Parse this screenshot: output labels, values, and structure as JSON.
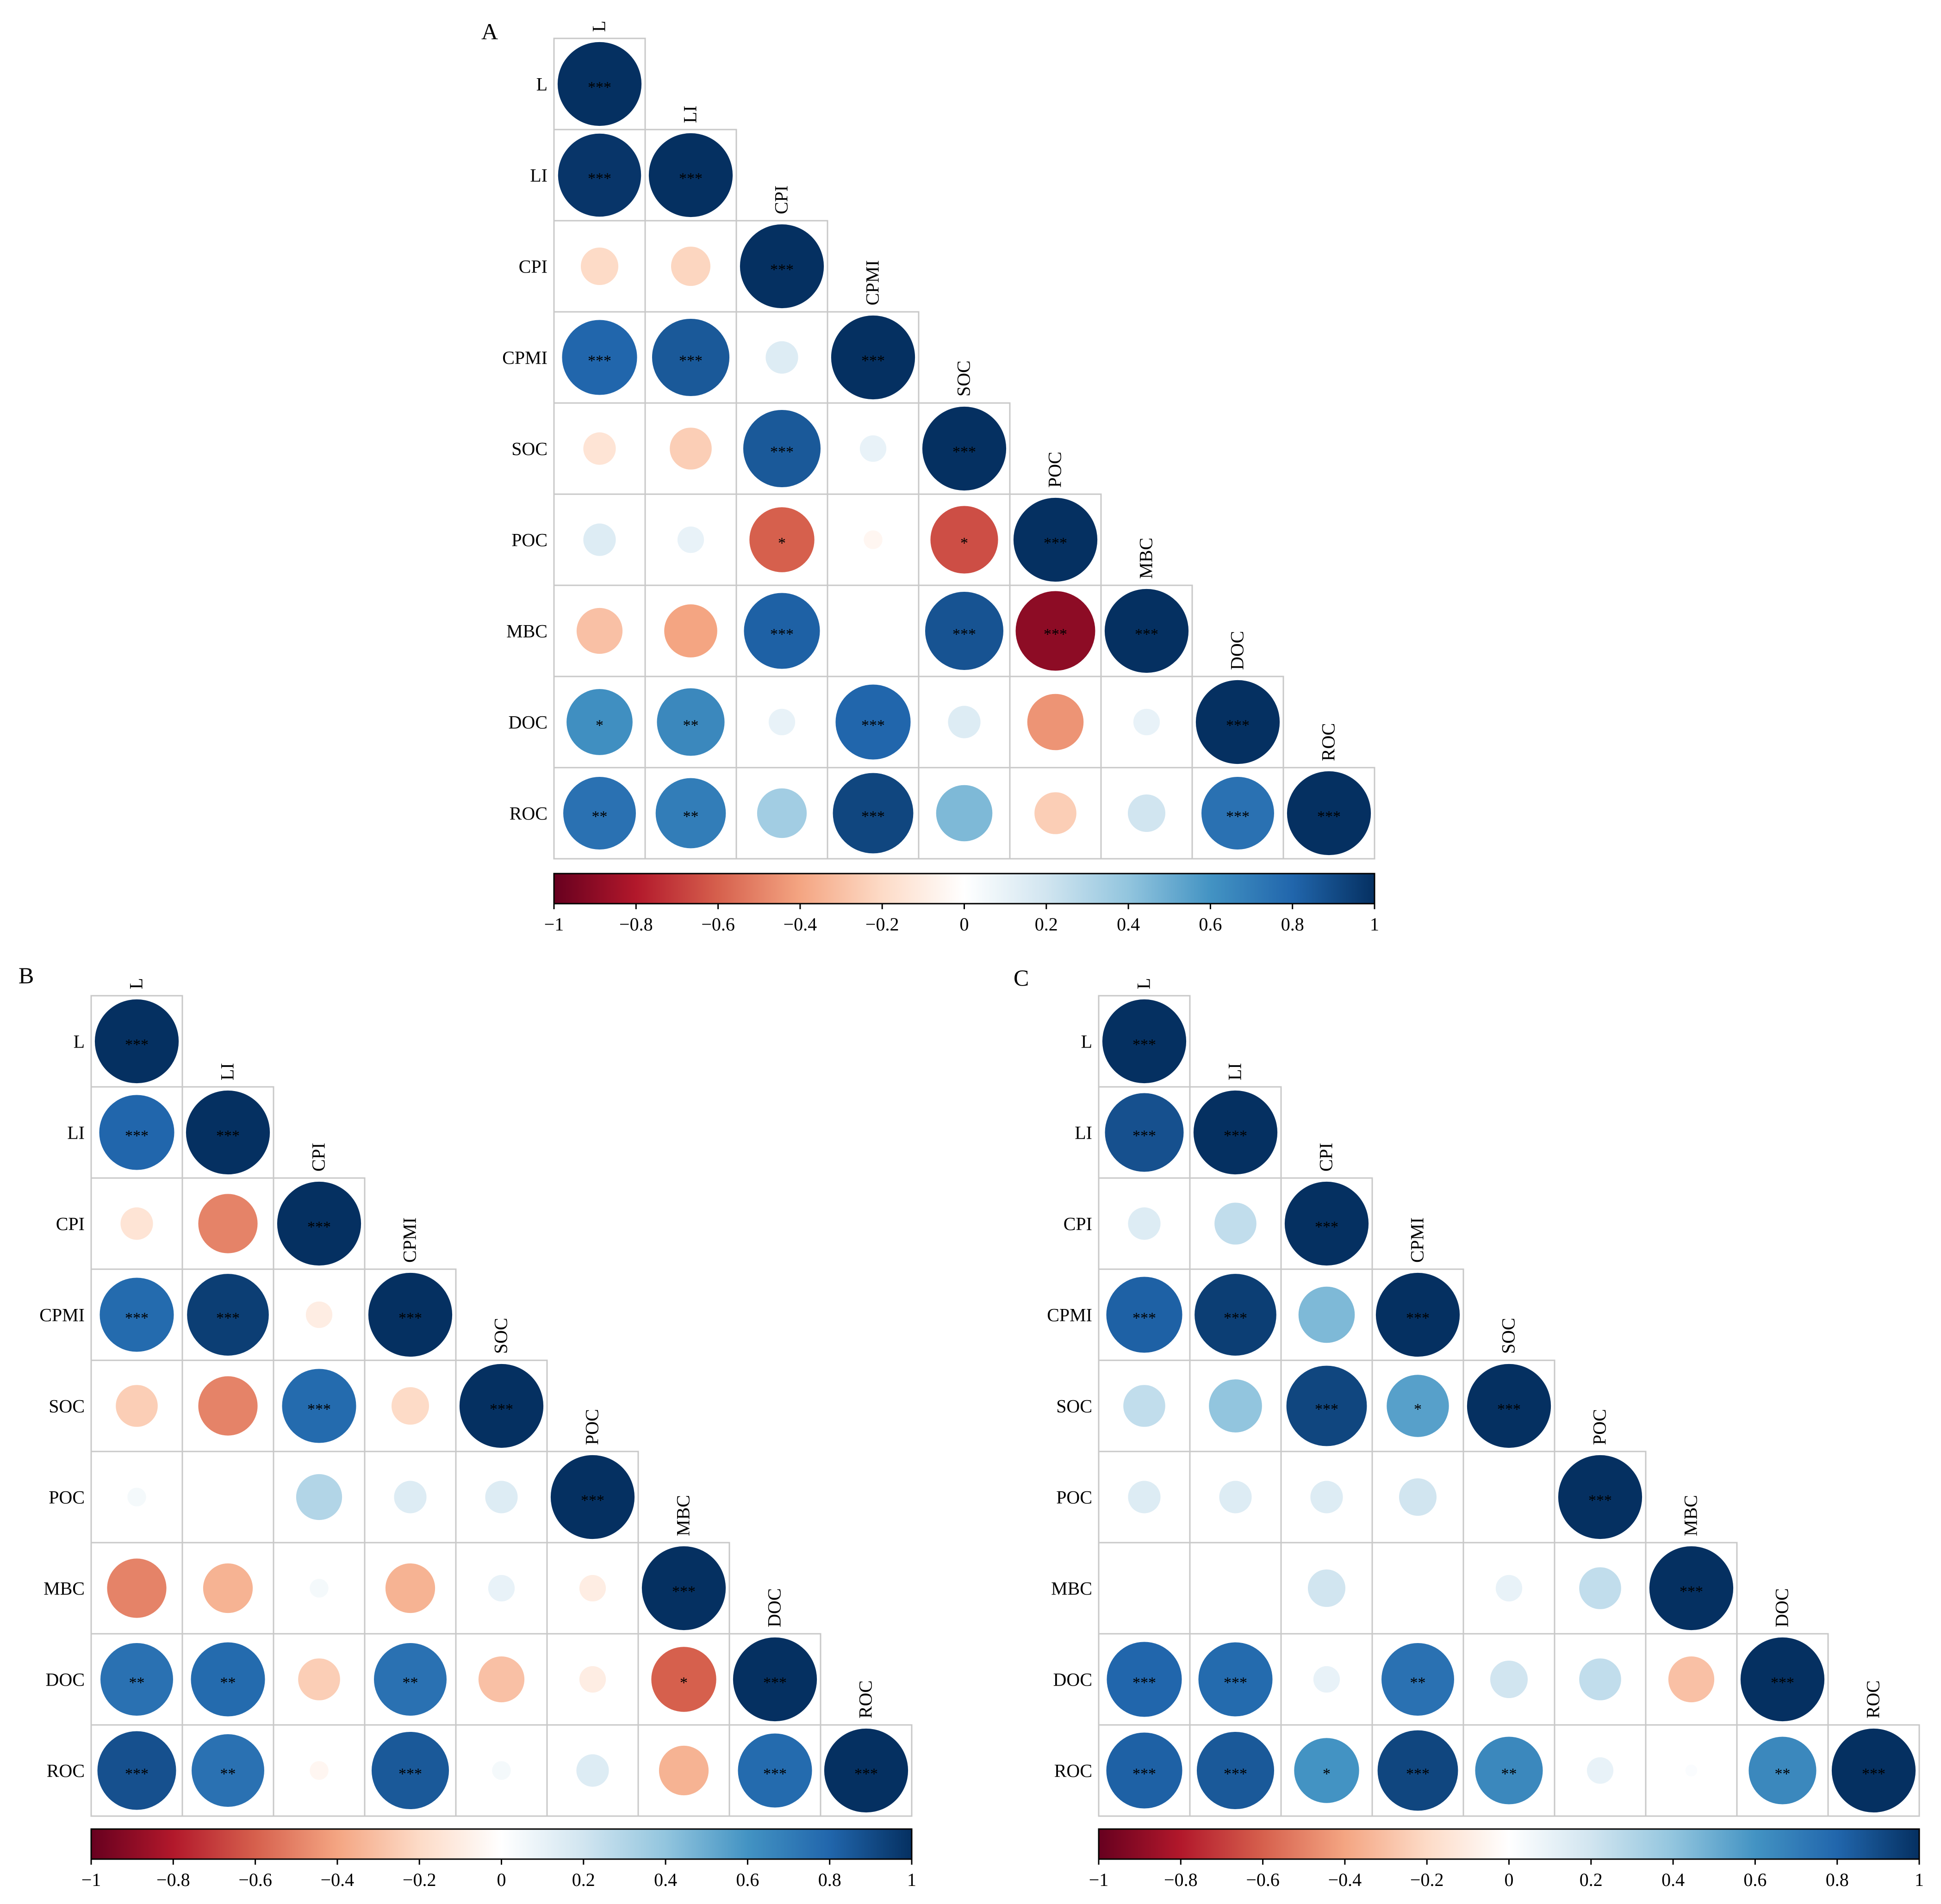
{
  "chart_data": [
    {
      "type": "heatmap",
      "panel_label": "A",
      "variables": [
        "L",
        "LI",
        "CPI",
        "CPMI",
        "SOC",
        "POC",
        "MBC",
        "DOC",
        "ROC"
      ],
      "matrix": [
        [
          1.0,
          0.98,
          -0.2,
          0.8,
          -0.15,
          0.15,
          -0.3,
          0.62,
          0.75
        ],
        [
          0.98,
          1.0,
          -0.22,
          0.85,
          -0.25,
          0.1,
          -0.4,
          0.65,
          0.7
        ],
        [
          -0.2,
          -0.22,
          1.0,
          0.15,
          0.85,
          -0.6,
          0.82,
          0.1,
          0.35
        ],
        [
          0.8,
          0.85,
          0.15,
          1.0,
          0.1,
          -0.05,
          0.0,
          0.8,
          0.92
        ],
        [
          -0.15,
          -0.25,
          0.85,
          0.1,
          1.0,
          -0.65,
          0.87,
          0.15,
          0.45
        ],
        [
          0.15,
          0.1,
          -0.6,
          -0.05,
          -0.65,
          1.0,
          -0.9,
          -0.45,
          -0.25
        ],
        [
          -0.3,
          -0.4,
          0.82,
          0.0,
          0.87,
          -0.9,
          1.0,
          0.1,
          0.2
        ],
        [
          0.62,
          0.65,
          0.1,
          0.8,
          0.15,
          -0.45,
          0.1,
          1.0,
          0.75
        ],
        [
          0.75,
          0.7,
          0.35,
          0.92,
          0.45,
          -0.25,
          0.2,
          0.75,
          1.0
        ]
      ],
      "significance": [
        [
          "***",
          "***",
          "",
          "***",
          "",
          "",
          "",
          "*",
          "**"
        ],
        [
          "***",
          "***",
          "",
          "***",
          "",
          "",
          "",
          "**",
          "**"
        ],
        [
          "",
          "",
          "***",
          "",
          "***",
          "*",
          "***",
          "",
          ""
        ],
        [
          "***",
          "***",
          "",
          "***",
          "",
          "",
          "",
          "***",
          "***"
        ],
        [
          "",
          "",
          "***",
          "",
          "***",
          "*",
          "***",
          "",
          ""
        ],
        [
          "",
          "",
          "*",
          "",
          "*",
          "***",
          "***",
          "",
          ""
        ],
        [
          "",
          "",
          "***",
          "",
          "***",
          "***",
          "***",
          "",
          ""
        ],
        [
          "*",
          "**",
          "",
          "***",
          "",
          "",
          "",
          "***",
          "***"
        ],
        [
          "**",
          "**",
          "",
          "***",
          "",
          "",
          "",
          "***",
          "***"
        ]
      ],
      "colorbar_range": [
        -1,
        1
      ],
      "colorbar_ticks": [
        "−1",
        "−0.8",
        "−0.6",
        "−0.4",
        "−0.2",
        "0",
        "0.2",
        "0.4",
        "0.6",
        "0.8",
        "1"
      ]
    },
    {
      "type": "heatmap",
      "panel_label": "B",
      "variables": [
        "L",
        "LI",
        "CPI",
        "CPMI",
        "SOC",
        "POC",
        "MBC",
        "DOC",
        "ROC"
      ],
      "matrix": [
        [
          1.0,
          0.8,
          -0.15,
          0.78,
          -0.25,
          0.05,
          -0.5,
          0.75,
          0.88
        ],
        [
          0.8,
          1.0,
          -0.5,
          0.95,
          -0.5,
          0.0,
          -0.35,
          0.78,
          0.75
        ],
        [
          -0.15,
          -0.5,
          1.0,
          -0.1,
          0.78,
          0.3,
          0.05,
          -0.25,
          -0.05
        ],
        [
          0.78,
          0.95,
          -0.1,
          1.0,
          -0.2,
          0.15,
          -0.35,
          0.75,
          0.85
        ],
        [
          -0.25,
          -0.5,
          0.78,
          -0.2,
          1.0,
          0.15,
          0.1,
          -0.3,
          0.05
        ],
        [
          0.05,
          0.0,
          0.3,
          0.15,
          0.15,
          1.0,
          -0.1,
          -0.1,
          0.15
        ],
        [
          -0.5,
          -0.35,
          0.05,
          -0.35,
          0.1,
          -0.1,
          1.0,
          -0.6,
          -0.35
        ],
        [
          0.75,
          0.78,
          -0.25,
          0.75,
          -0.3,
          -0.1,
          -0.6,
          1.0,
          0.78
        ],
        [
          0.88,
          0.75,
          -0.05,
          0.85,
          0.05,
          0.15,
          -0.35,
          0.78,
          1.0
        ]
      ],
      "significance": [
        [
          "***",
          "***",
          "",
          "***",
          "",
          "",
          "",
          "**",
          "***"
        ],
        [
          "***",
          "***",
          "",
          "***",
          "",
          "",
          "",
          "**",
          "**"
        ],
        [
          "",
          "",
          "***",
          "",
          "***",
          "",
          "",
          "",
          ""
        ],
        [
          "***",
          "***",
          "",
          "***",
          "",
          "",
          "",
          "**",
          "***"
        ],
        [
          "",
          "",
          "***",
          "",
          "***",
          "",
          "",
          "",
          ""
        ],
        [
          "",
          "",
          "",
          "",
          "",
          "***",
          "",
          "",
          ""
        ],
        [
          "",
          "",
          "",
          "",
          "",
          "",
          "***",
          "*",
          ""
        ],
        [
          "**",
          "**",
          "",
          "**",
          "",
          "",
          "*",
          "***",
          "***"
        ],
        [
          "***",
          "**",
          "",
          "***",
          "",
          "",
          "",
          "***",
          "***"
        ]
      ],
      "colorbar_range": [
        -1,
        1
      ],
      "colorbar_ticks": [
        "−1",
        "−0.8",
        "−0.6",
        "−0.4",
        "−0.2",
        "0",
        "0.2",
        "0.4",
        "0.6",
        "0.8",
        "1"
      ]
    },
    {
      "type": "heatmap",
      "panel_label": "C",
      "variables": [
        "L",
        "LI",
        "CPI",
        "CPMI",
        "SOC",
        "POC",
        "MBC",
        "DOC",
        "ROC"
      ],
      "matrix": [
        [
          1.0,
          0.88,
          0.15,
          0.82,
          0.25,
          0.15,
          0.0,
          0.8,
          0.82
        ],
        [
          0.88,
          1.0,
          0.25,
          0.95,
          0.4,
          0.15,
          0.0,
          0.78,
          0.85
        ],
        [
          0.15,
          0.25,
          1.0,
          0.45,
          0.92,
          0.15,
          0.2,
          0.1,
          0.6
        ],
        [
          0.82,
          0.95,
          0.45,
          1.0,
          0.55,
          0.2,
          0.0,
          0.75,
          0.92
        ],
        [
          0.25,
          0.4,
          0.92,
          0.55,
          1.0,
          0.0,
          0.1,
          0.2,
          0.65
        ],
        [
          0.15,
          0.15,
          0.15,
          0.2,
          0.0,
          1.0,
          0.25,
          0.25,
          0.1
        ],
        [
          0.0,
          0.0,
          0.2,
          0.0,
          0.1,
          0.25,
          1.0,
          -0.3,
          0.02
        ],
        [
          0.8,
          0.78,
          0.1,
          0.75,
          0.2,
          0.25,
          -0.3,
          1.0,
          0.65
        ],
        [
          0.82,
          0.85,
          0.6,
          0.92,
          0.65,
          0.1,
          0.02,
          0.65,
          1.0
        ]
      ],
      "significance": [
        [
          "***",
          "***",
          "",
          "***",
          "",
          "",
          "",
          "***",
          "***"
        ],
        [
          "***",
          "***",
          "",
          "***",
          "",
          "",
          "",
          "***",
          "***"
        ],
        [
          "",
          "",
          "***",
          "",
          "***",
          "",
          "",
          "",
          "*"
        ],
        [
          "***",
          "***",
          "",
          "***",
          "*",
          "",
          "",
          "**",
          "***"
        ],
        [
          "",
          "",
          "***",
          "*",
          "***",
          "",
          "",
          "",
          "**"
        ],
        [
          "",
          "",
          "",
          "",
          "",
          "***",
          "",
          "",
          ""
        ],
        [
          "",
          "",
          "",
          "",
          "",
          "",
          "***",
          "",
          ""
        ],
        [
          "***",
          "***",
          "",
          "**",
          "",
          "",
          "",
          "***",
          "**"
        ],
        [
          "***",
          "***",
          "*",
          "***",
          "**",
          "",
          "",
          "**",
          "***"
        ]
      ],
      "colorbar_range": [
        -1,
        1
      ],
      "colorbar_ticks": [
        "−1",
        "−0.8",
        "−0.6",
        "−0.4",
        "−0.2",
        "0",
        "0.2",
        "0.4",
        "0.6",
        "0.8",
        "1"
      ]
    }
  ]
}
